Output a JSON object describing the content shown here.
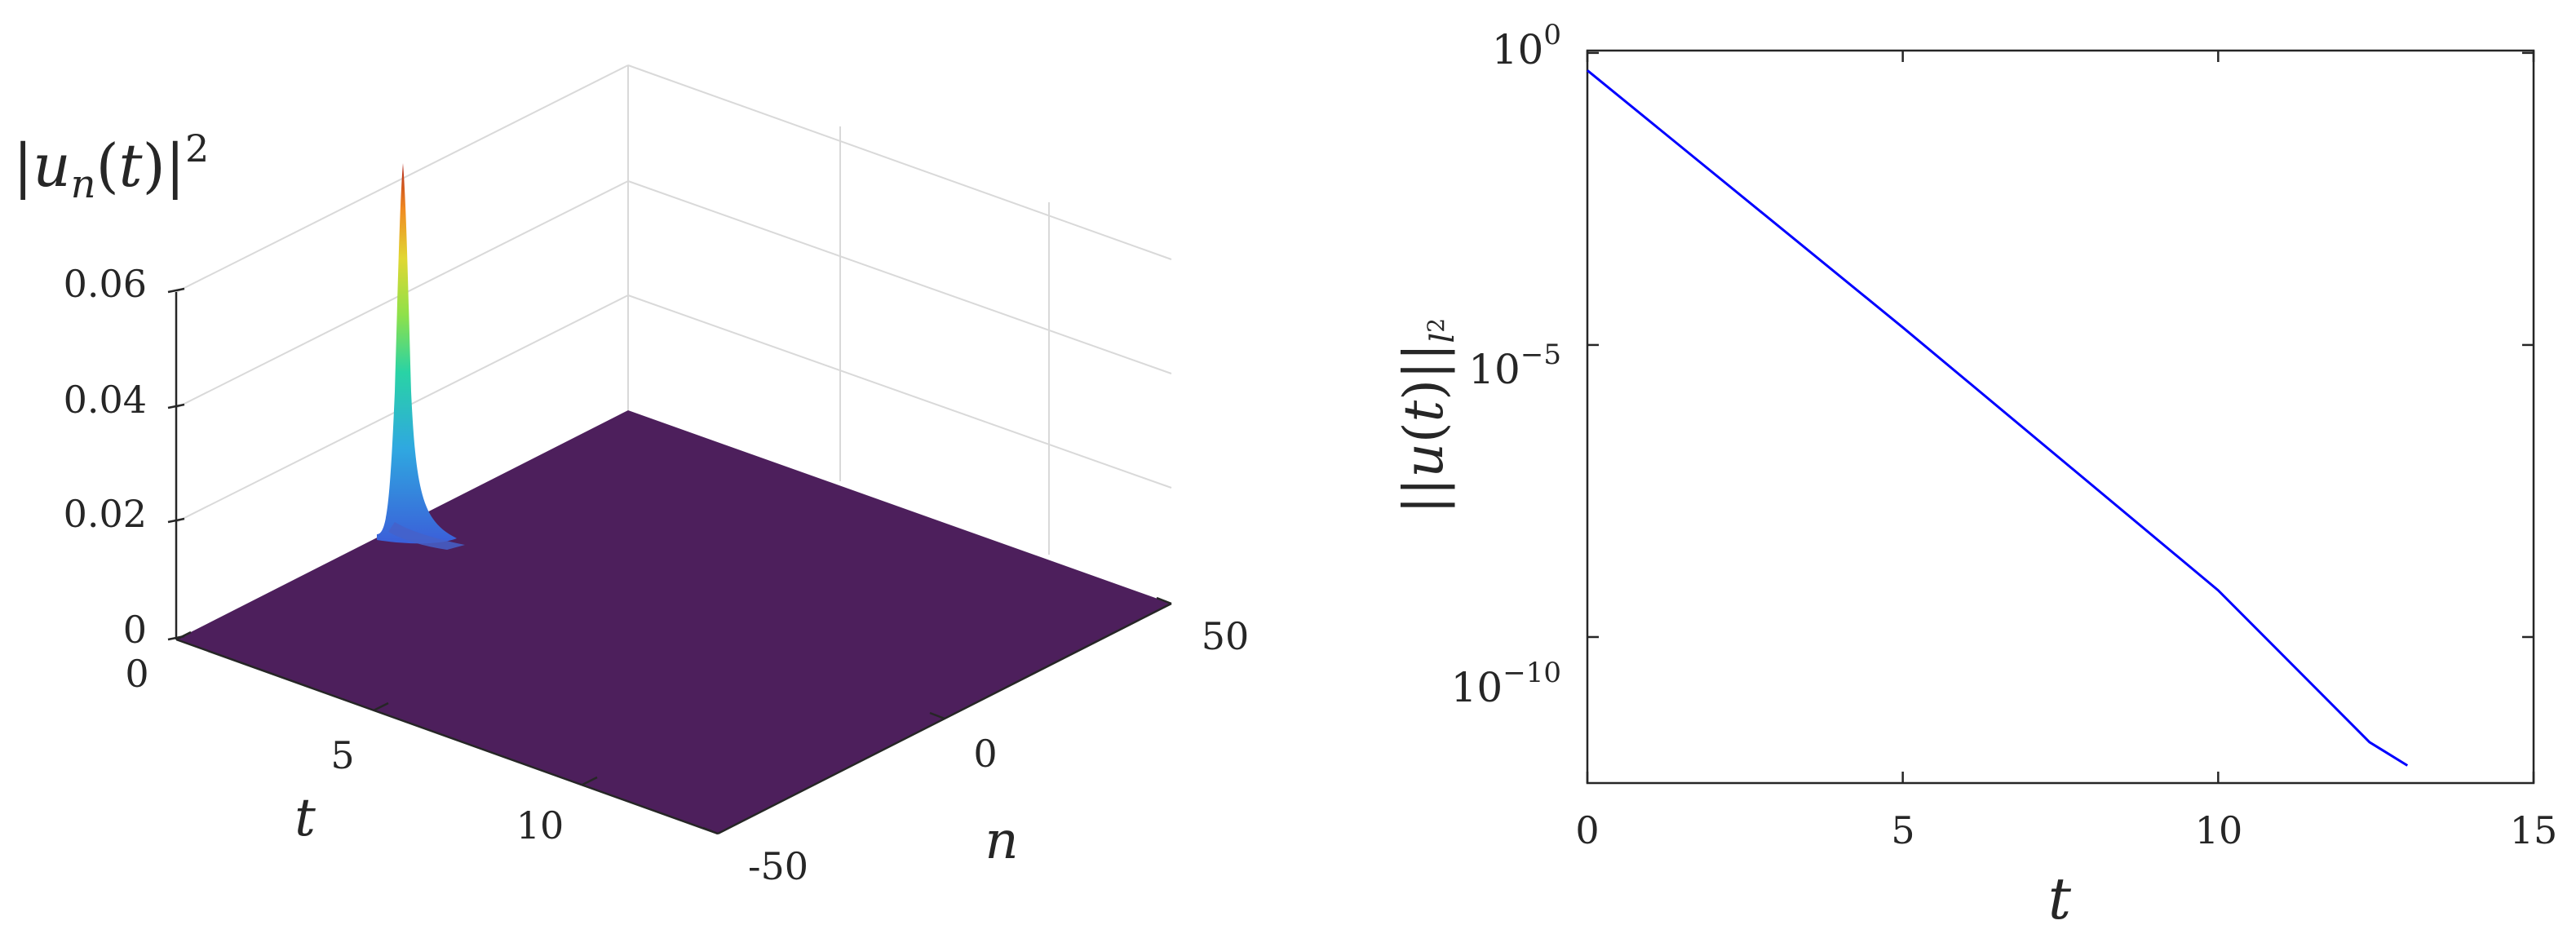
{
  "chart_data": [
    {
      "type": "surface",
      "zlabel": "|u_n(t)|^2",
      "xlabel": "t",
      "ylabel": "n",
      "t_ticks": [
        "0",
        "5",
        "10"
      ],
      "n_ticks": [
        "-50",
        "0",
        "50"
      ],
      "z_ticks": [
        "0",
        "0.02",
        "0.04",
        "0.06"
      ],
      "t_range": [
        0,
        13
      ],
      "n_range": [
        -50,
        50
      ],
      "z_range": [
        0,
        0.065
      ],
      "peak": {
        "t": 0,
        "n": 0,
        "value": 0.065
      },
      "colormap": "turbo",
      "floor_color": "#4d1f5c",
      "grid": true
    },
    {
      "type": "line",
      "scale": "log-y",
      "xlabel": "t",
      "ylabel": "||u(t)||_{l^2}",
      "x_ticks": [
        "0",
        "5",
        "10",
        "15"
      ],
      "y_ticks": [
        {
          "base": "10",
          "exp": "0"
        },
        {
          "base": "10",
          "exp": "−5"
        },
        {
          "base": "10",
          "exp": "−10"
        }
      ],
      "xlim": [
        0,
        15
      ],
      "ylim_log10": [
        -12.5,
        0
      ],
      "series": [
        {
          "color": "#0000ff",
          "x": [
            0,
            5,
            10,
            12.4,
            13
          ],
          "log10_y": [
            -0.3,
            -4.7,
            -9.2,
            -11.8,
            -12.2
          ]
        }
      ],
      "grid": false
    }
  ]
}
